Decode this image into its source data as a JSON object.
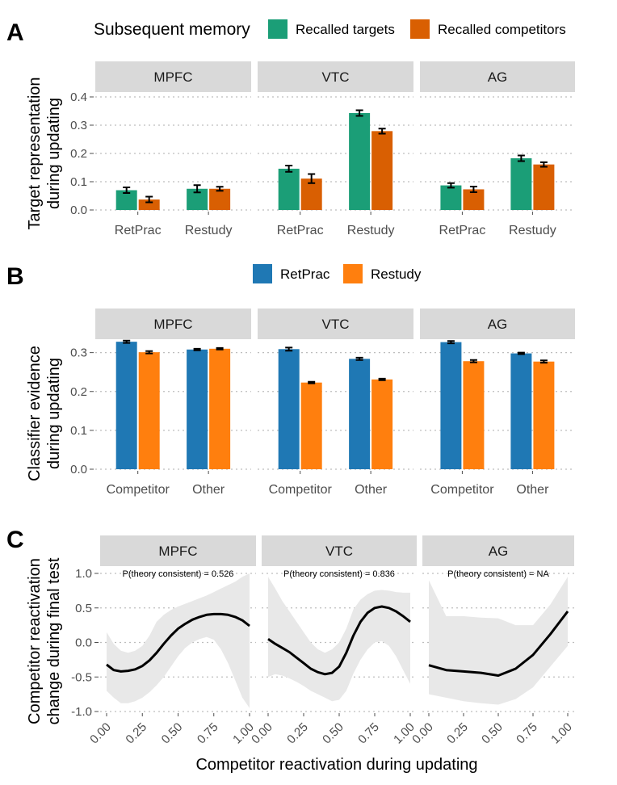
{
  "colors": {
    "targets": "#1b9e77",
    "competitors": "#d95f02",
    "retprac": "#1f78b4",
    "restudy": "#ff7f0e",
    "ribbon": "#e8e8e8",
    "line": "#000000"
  },
  "chart_data": [
    {
      "panel": "A",
      "type": "bar",
      "legend_title": "Subsequent memory",
      "legend": [
        "Recalled targets",
        "Recalled competitors"
      ],
      "ylabel": [
        "Target representation",
        "during updating"
      ],
      "ylim": [
        0,
        0.4
      ],
      "yticks": [
        "0.0",
        "0.1",
        "0.2",
        "0.3",
        "0.4"
      ],
      "categories": [
        "RetPrac",
        "Restudy"
      ],
      "facets": [
        {
          "name": "MPFC",
          "series": [
            {
              "name": "Recalled targets",
              "values": [
                0.07,
                0.075
              ],
              "err": [
                0.01,
                0.013
              ]
            },
            {
              "name": "Recalled competitors",
              "values": [
                0.037,
                0.075
              ],
              "err": [
                0.01,
                0.007
              ]
            }
          ]
        },
        {
          "name": "VTC",
          "series": [
            {
              "name": "Recalled targets",
              "values": [
                0.146,
                0.343
              ],
              "err": [
                0.011,
                0.01
              ]
            },
            {
              "name": "Recalled competitors",
              "values": [
                0.111,
                0.279
              ],
              "err": [
                0.016,
                0.009
              ]
            }
          ]
        },
        {
          "name": "AG",
          "series": [
            {
              "name": "Recalled targets",
              "values": [
                0.087,
                0.183
              ],
              "err": [
                0.008,
                0.01
              ]
            },
            {
              "name": "Recalled competitors",
              "values": [
                0.073,
                0.161
              ],
              "err": [
                0.01,
                0.008
              ]
            }
          ]
        }
      ]
    },
    {
      "panel": "B",
      "type": "bar",
      "legend": [
        "RetPrac",
        "Restudy"
      ],
      "ylabel": [
        "Classifier evidence",
        "during updating"
      ],
      "ylim": [
        0,
        0.32
      ],
      "yticks": [
        "0.0",
        "0.1",
        "0.2",
        "0.3"
      ],
      "categories": [
        "Competitor",
        "Other"
      ],
      "facets": [
        {
          "name": "MPFC",
          "series": [
            {
              "name": "RetPrac",
              "values": [
                0.328,
                0.308
              ],
              "err": [
                0.003,
                0.002
              ]
            },
            {
              "name": "Restudy",
              "values": [
                0.301,
                0.31
              ],
              "err": [
                0.003,
                0.002
              ]
            }
          ]
        },
        {
          "name": "VTC",
          "series": [
            {
              "name": "RetPrac",
              "values": [
                0.309,
                0.284
              ],
              "err": [
                0.004,
                0.003
              ]
            },
            {
              "name": "Restudy",
              "values": [
                0.223,
                0.231
              ],
              "err": [
                0.002,
                0.002
              ]
            }
          ]
        },
        {
          "name": "AG",
          "series": [
            {
              "name": "RetPrac",
              "values": [
                0.327,
                0.298
              ],
              "err": [
                0.003,
                0.002
              ]
            },
            {
              "name": "Restudy",
              "values": [
                0.278,
                0.277
              ],
              "err": [
                0.003,
                0.003
              ]
            }
          ]
        }
      ]
    },
    {
      "panel": "C",
      "type": "line",
      "xlabel": "Competitor reactivation during updating",
      "ylabel": [
        "Competitor reactivation",
        "change during final test"
      ],
      "xlim": [
        0,
        1
      ],
      "ylim": [
        -1,
        1
      ],
      "xticks": [
        "0.00",
        "0.25",
        "0.50",
        "0.75",
        "1.00"
      ],
      "yticks": [
        "-1.0",
        "-0.5",
        "0.0",
        "0.5",
        "1.0"
      ],
      "facets": [
        {
          "name": "MPFC",
          "annotation": "P(theory consistent) = 0.526",
          "x": [
            0.0,
            0.05,
            0.1,
            0.15,
            0.2,
            0.25,
            0.3,
            0.35,
            0.4,
            0.45,
            0.5,
            0.55,
            0.6,
            0.65,
            0.7,
            0.75,
            0.8,
            0.85,
            0.9,
            0.95,
            1.0
          ],
          "y": [
            -0.32,
            -0.4,
            -0.42,
            -0.41,
            -0.39,
            -0.34,
            -0.26,
            -0.15,
            -0.02,
            0.1,
            0.2,
            0.27,
            0.33,
            0.37,
            0.4,
            0.41,
            0.41,
            0.4,
            0.37,
            0.32,
            0.24
          ],
          "lower": [
            -0.7,
            -0.8,
            -0.88,
            -0.88,
            -0.85,
            -0.8,
            -0.72,
            -0.62,
            -0.5,
            -0.35,
            -0.2,
            -0.08,
            0.0,
            0.05,
            0.08,
            0.04,
            -0.1,
            -0.3,
            -0.55,
            -0.8,
            -0.95
          ],
          "upper": [
            0.15,
            -0.02,
            -0.12,
            -0.15,
            -0.12,
            -0.05,
            0.1,
            0.3,
            0.4,
            0.47,
            0.52,
            0.56,
            0.6,
            0.64,
            0.68,
            0.73,
            0.78,
            0.83,
            0.88,
            0.95,
            1.0
          ]
        },
        {
          "name": "VTC",
          "annotation": "P(theory consistent) = 0.836",
          "x": [
            0.0,
            0.05,
            0.1,
            0.15,
            0.2,
            0.25,
            0.3,
            0.35,
            0.4,
            0.45,
            0.5,
            0.55,
            0.6,
            0.65,
            0.7,
            0.75,
            0.8,
            0.85,
            0.9,
            0.95,
            1.0
          ],
          "y": [
            0.05,
            -0.02,
            -0.08,
            -0.14,
            -0.22,
            -0.3,
            -0.38,
            -0.43,
            -0.46,
            -0.44,
            -0.35,
            -0.15,
            0.1,
            0.3,
            0.43,
            0.5,
            0.52,
            0.5,
            0.45,
            0.38,
            0.3
          ],
          "lower": [
            -0.5,
            -0.46,
            -0.48,
            -0.52,
            -0.57,
            -0.63,
            -0.7,
            -0.75,
            -0.8,
            -0.85,
            -0.83,
            -0.7,
            -0.45,
            -0.25,
            -0.1,
            0.0,
            0.02,
            -0.05,
            -0.2,
            -0.4,
            -0.6
          ],
          "upper": [
            0.95,
            0.78,
            0.6,
            0.45,
            0.3,
            0.15,
            0.0,
            -0.1,
            -0.15,
            -0.1,
            0.0,
            0.2,
            0.48,
            0.62,
            0.7,
            0.75,
            0.76,
            0.75,
            0.73,
            0.72,
            0.72
          ]
        },
        {
          "name": "AG",
          "annotation": "P(theory consistent) = NA",
          "x": [
            0.0,
            0.125,
            0.25,
            0.375,
            0.5,
            0.625,
            0.75,
            0.875,
            1.0
          ],
          "y": [
            -0.33,
            -0.4,
            -0.42,
            -0.44,
            -0.48,
            -0.38,
            -0.18,
            0.12,
            0.45
          ],
          "lower": [
            -0.75,
            -0.8,
            -0.85,
            -0.88,
            -0.9,
            -0.82,
            -0.65,
            -0.35,
            -0.05
          ],
          "upper": [
            0.9,
            0.38,
            0.38,
            0.36,
            0.35,
            0.25,
            0.25,
            0.55,
            0.95
          ]
        }
      ]
    }
  ]
}
